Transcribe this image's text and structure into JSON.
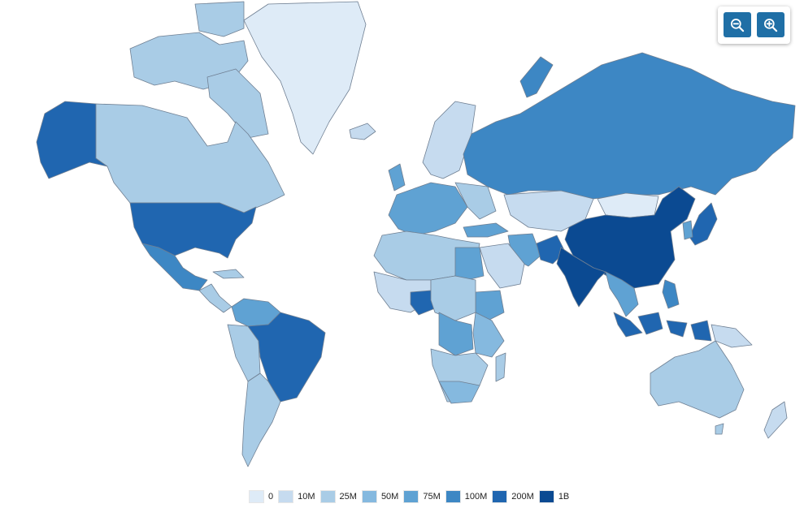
{
  "zoom": {
    "zoom_out_icon": "zoom-out-magnifier-icon",
    "zoom_in_icon": "zoom-in-magnifier-icon",
    "button_color": "#1f6fa6"
  },
  "legend": {
    "items": [
      {
        "label": "0",
        "color": "#deebf7"
      },
      {
        "label": "10M",
        "color": "#c6dbef"
      },
      {
        "label": "25M",
        "color": "#a9cce6"
      },
      {
        "label": "50M",
        "color": "#85b9df"
      },
      {
        "label": "75M",
        "color": "#5fa2d3"
      },
      {
        "label": "100M",
        "color": "#3d87c4"
      },
      {
        "label": "200M",
        "color": "#2066b0"
      },
      {
        "label": "1B",
        "color": "#0b4a92"
      }
    ]
  },
  "regions": [
    {
      "name": "Greenland",
      "bin": 0
    },
    {
      "name": "Canada",
      "bin": 2
    },
    {
      "name": "Alaska",
      "bin": 6
    },
    {
      "name": "United States",
      "bin": 6
    },
    {
      "name": "Mexico",
      "bin": 5
    },
    {
      "name": "Brazil",
      "bin": 6
    },
    {
      "name": "Russia",
      "bin": 5
    },
    {
      "name": "China",
      "bin": 7
    },
    {
      "name": "India",
      "bin": 7
    },
    {
      "name": "Australia",
      "bin": 2
    },
    {
      "name": "Kazakhstan",
      "bin": 1
    },
    {
      "name": "Mongolia",
      "bin": 0
    },
    {
      "name": "Indonesia",
      "bin": 6
    },
    {
      "name": "Nigeria",
      "bin": 6
    },
    {
      "name": "DR Congo",
      "bin": 4
    },
    {
      "name": "Ethiopia",
      "bin": 4
    },
    {
      "name": "Egypt",
      "bin": 4
    },
    {
      "name": "Pakistan",
      "bin": 6
    },
    {
      "name": "Japan",
      "bin": 6
    }
  ]
}
